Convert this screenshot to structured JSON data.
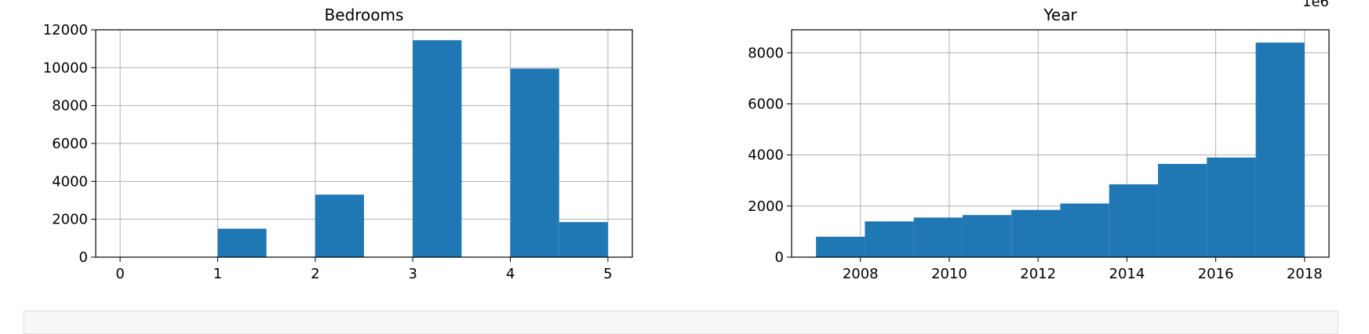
{
  "chart_data": [
    {
      "type": "bar",
      "title": "Bedrooms",
      "xlabel": "",
      "ylabel": "",
      "xlim": [
        -0.25,
        5.25
      ],
      "ylim": [
        0,
        12000
      ],
      "xticks": [
        "0",
        "1",
        "2",
        "3",
        "4",
        "5"
      ],
      "yticks": [
        "0",
        "2000",
        "4000",
        "6000",
        "8000",
        "10000",
        "12000"
      ],
      "grid": true,
      "color": "#1f77b4",
      "bins": [
        {
          "x0": 0.0,
          "x1": 0.5,
          "value": 0
        },
        {
          "x0": 0.5,
          "x1": 1.0,
          "value": 0
        },
        {
          "x0": 1.0,
          "x1": 1.5,
          "value": 1500
        },
        {
          "x0": 1.5,
          "x1": 2.0,
          "value": 0
        },
        {
          "x0": 2.0,
          "x1": 2.5,
          "value": 3300
        },
        {
          "x0": 2.5,
          "x1": 3.0,
          "value": 0
        },
        {
          "x0": 3.0,
          "x1": 3.5,
          "value": 11450
        },
        {
          "x0": 3.5,
          "x1": 4.0,
          "value": 0
        },
        {
          "x0": 4.0,
          "x1": 4.5,
          "value": 9950
        },
        {
          "x0": 4.5,
          "x1": 5.0,
          "value": 1850
        }
      ]
    },
    {
      "type": "bar",
      "title": "Year",
      "xlabel": "",
      "ylabel": "",
      "offset_label": "1e6",
      "xlim": [
        2006.45,
        2018.55
      ],
      "ylim": [
        0,
        8900
      ],
      "xticks": [
        "2008",
        "2010",
        "2012",
        "2014",
        "2016",
        "2018"
      ],
      "yticks": [
        "0",
        "2000",
        "4000",
        "6000",
        "8000"
      ],
      "grid": true,
      "color": "#1f77b4",
      "bins": [
        {
          "x0": 2007.0,
          "x1": 2008.1,
          "value": 800
        },
        {
          "x0": 2008.1,
          "x1": 2009.2,
          "value": 1400
        },
        {
          "x0": 2009.2,
          "x1": 2010.3,
          "value": 1550
        },
        {
          "x0": 2010.3,
          "x1": 2011.4,
          "value": 1650
        },
        {
          "x0": 2011.4,
          "x1": 2012.5,
          "value": 1850
        },
        {
          "x0": 2012.5,
          "x1": 2013.6,
          "value": 2100
        },
        {
          "x0": 2013.6,
          "x1": 2014.7,
          "value": 2850
        },
        {
          "x0": 2014.7,
          "x1": 2015.8,
          "value": 3650
        },
        {
          "x0": 2015.8,
          "x1": 2016.9,
          "value": 3900
        },
        {
          "x0": 2016.9,
          "x1": 2018.0,
          "value": 8400
        }
      ]
    }
  ]
}
